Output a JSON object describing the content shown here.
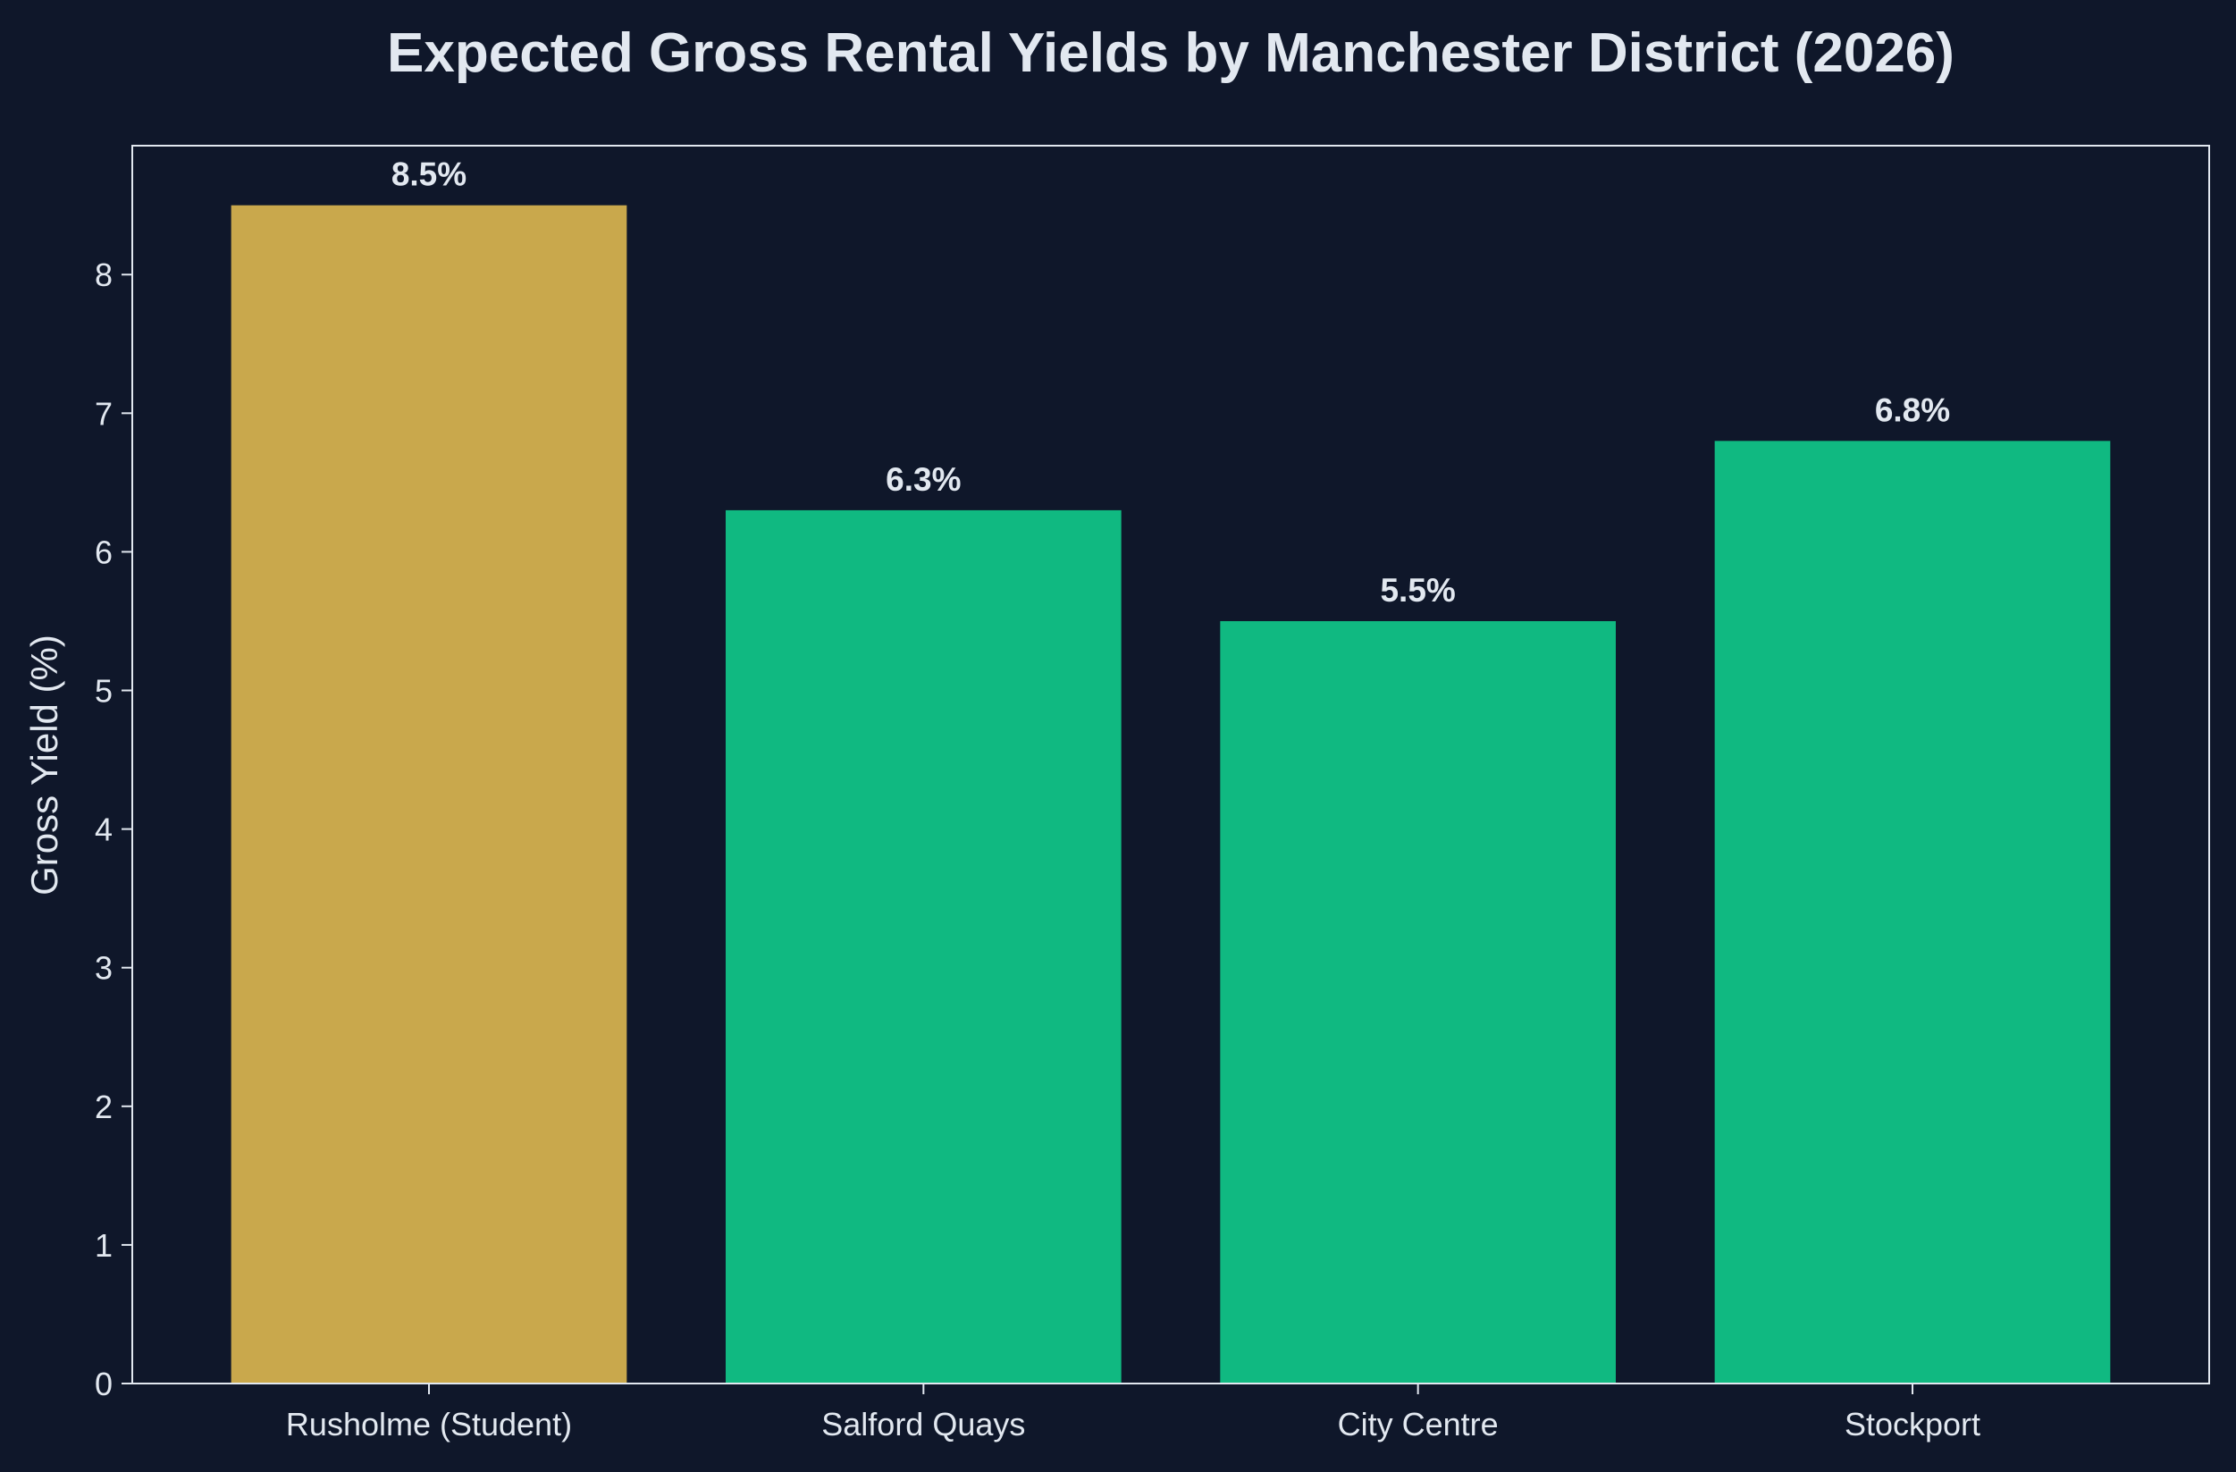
{
  "colors": {
    "background": "#0f172a",
    "text": "#e2e8f0",
    "axis": "#e2e8f0",
    "highlight_bar": "#c9a84c",
    "default_bar": "#10b981"
  },
  "chart_data": {
    "type": "bar",
    "title": "Expected Gross Rental Yields by Manchester District (2026)",
    "xlabel": "",
    "ylabel": "Gross Yield (%)",
    "categories": [
      "Rusholme (Student)",
      "Salford Quays",
      "City Centre",
      "Stockport"
    ],
    "values": [
      8.5,
      6.3,
      5.5,
      6.8
    ],
    "value_labels": [
      "8.5%",
      "6.3%",
      "5.5%",
      "6.8%"
    ],
    "bar_colors": [
      "#c9a84c",
      "#10b981",
      "#10b981",
      "#10b981"
    ],
    "ylim": [
      0,
      8.93
    ],
    "yticks": [
      0,
      1,
      2,
      3,
      4,
      5,
      6,
      7,
      8
    ],
    "grid": false,
    "legend": "none"
  }
}
